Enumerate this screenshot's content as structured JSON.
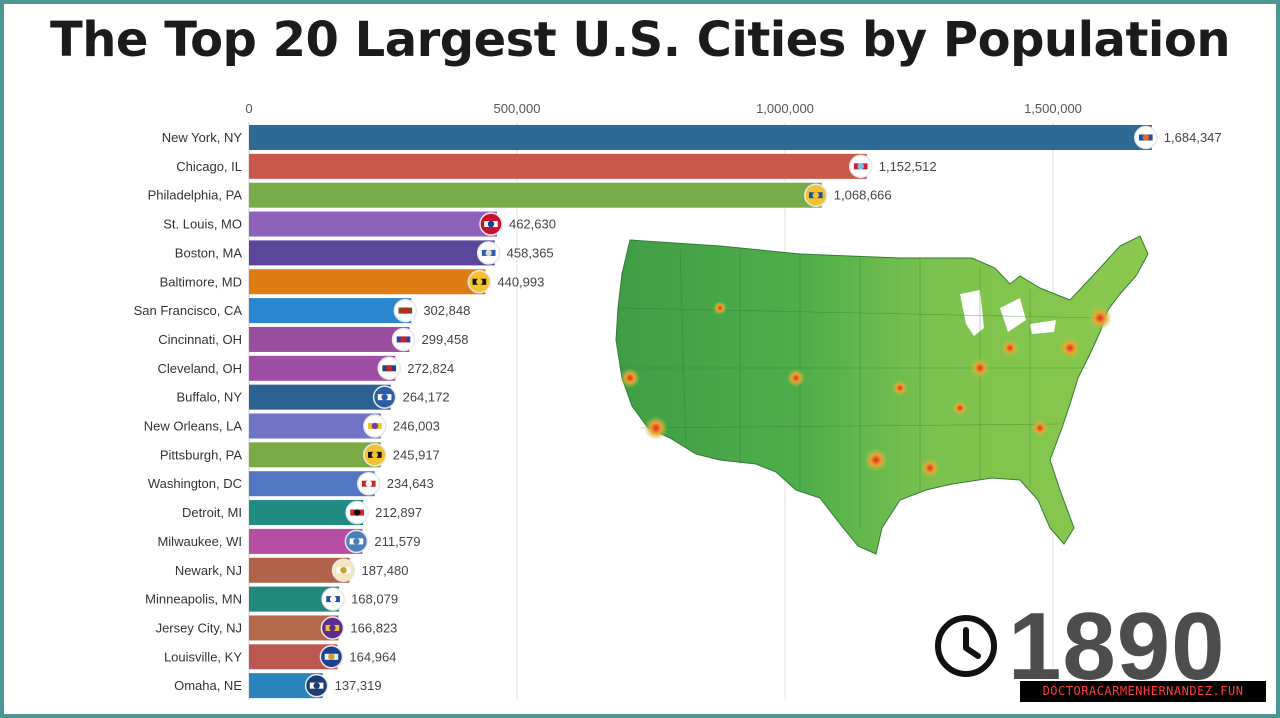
{
  "title": "The Top 20 Largest U.S. Cities by Population",
  "year": "1890",
  "watermark": "DOCTORACARMENHERNANDEZ.FUN",
  "colors": {
    "border": "#4a9690",
    "title": "#1b1b1b",
    "year": "#4d4d4d"
  },
  "icons": {
    "clock": "clock-icon",
    "map": "us-population-density-map"
  },
  "chart_data": {
    "type": "bar",
    "orientation": "horizontal",
    "title": "The Top 20 Largest U.S. Cities by Population",
    "xlim": [
      0,
      1750000
    ],
    "x_ticks": [
      0,
      500000,
      1000000,
      1500000
    ],
    "x_tick_labels": [
      "0",
      "500,000",
      "1,000,000",
      "1,500,000"
    ],
    "x_axis_position": "top",
    "grid": true,
    "categories": [
      "New York, NY",
      "Chicago, IL",
      "Philadelphia, PA",
      "St. Louis, MO",
      "Boston, MA",
      "Baltimore, MD",
      "San Francisco, CA",
      "Cincinnati, OH",
      "Cleveland, OH",
      "Buffalo, NY",
      "New Orleans, LA",
      "Pittsburgh, PA",
      "Washington, DC",
      "Detroit, MI",
      "Milwaukee, WI",
      "Newark, NJ",
      "Minneapolis, MN",
      "Jersey City, NJ",
      "Louisville, KY",
      "Omaha, NE"
    ],
    "values": [
      1684347,
      1152512,
      1068666,
      462630,
      458365,
      440993,
      302848,
      299458,
      272824,
      264172,
      246003,
      245917,
      234643,
      212897,
      211579,
      187480,
      168079,
      166823,
      164964,
      137319
    ],
    "value_labels": [
      "1,684,347",
      "1,152,512",
      "1,068,666",
      "462,630",
      "458,365",
      "440,993",
      "302,848",
      "299,458",
      "272,824",
      "264,172",
      "246,003",
      "245,917",
      "234,643",
      "212,897",
      "211,579",
      "187,480",
      "168,079",
      "166,823",
      "164,964",
      "137,319"
    ],
    "bar_colors": [
      "#2e6a96",
      "#c9584a",
      "#78ac4a",
      "#8e62b8",
      "#5a479a",
      "#e07d12",
      "#2a86cf",
      "#9a4ea0",
      "#9f4ea6",
      "#2b6292",
      "#7073c6",
      "#7aaa46",
      "#5277c2",
      "#1f8b83",
      "#b64fa4",
      "#b1624a",
      "#23877e",
      "#b5694c",
      "#bb5650",
      "#2a84bd"
    ],
    "flag_colors": [
      [
        "#ffffff",
        "#1d4fa0",
        "#e86a1f"
      ],
      [
        "#ffffff",
        "#cf2030",
        "#7fc2e8"
      ],
      [
        "#f2c230",
        "#1d4fa0",
        "#f2c230"
      ],
      [
        "#c8102e",
        "#ffffff",
        "#0b3d91"
      ],
      [
        "#ffffff",
        "#2f5aa7",
        "#d8d8d8"
      ],
      [
        "#f2c230",
        "#111111",
        "#f2c230"
      ],
      [
        "#ffffff",
        "#7a4b1e",
        "#cc2222"
      ],
      [
        "#ffffff",
        "#3a3aa0",
        "#cc2222"
      ],
      [
        "#ffffff",
        "#1d3f8f",
        "#cc2222"
      ],
      [
        "#2a5ca8",
        "#ffffff",
        "#2a5ca8"
      ],
      [
        "#ffffff",
        "#f2c230",
        "#7a3fa0"
      ],
      [
        "#f2c230",
        "#111111",
        "#f2c230"
      ],
      [
        "#ffffff",
        "#cc2222",
        "#ffffff"
      ],
      [
        "#ffffff",
        "#cc2222",
        "#111111"
      ],
      [
        "#4a7fbf",
        "#ffffff",
        "#4a7fbf"
      ],
      [
        "#f4e7c0",
        "#ffffff",
        "#c8a030"
      ],
      [
        "#ffffff",
        "#1c4fa0",
        "#ffffff"
      ],
      [
        "#5a2d91",
        "#f2c230",
        "#5a2d91"
      ],
      [
        "#1d3f8f",
        "#f2f2f2",
        "#c8a030"
      ],
      [
        "#1c3f73",
        "#ffffff",
        "#1c3f73"
      ]
    ]
  }
}
